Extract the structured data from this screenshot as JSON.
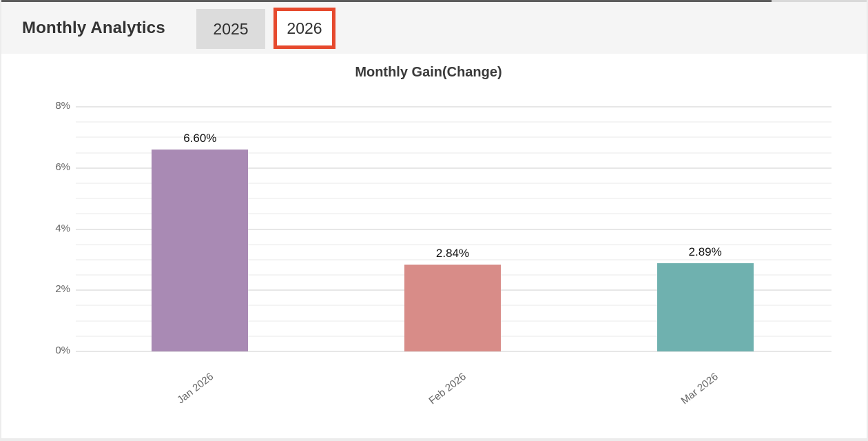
{
  "header": {
    "title": "Monthly Analytics",
    "tabs": [
      {
        "label": "2025",
        "selected": false
      },
      {
        "label": "2026",
        "selected": true
      }
    ]
  },
  "colors": {
    "header_bg": "#f5f5f5",
    "inactive_tab_bg": "#dcdcdc",
    "selected_tab_highlight": "#e6492d",
    "grid_major": "#e7e7e7",
    "grid_minor": "#f4f4f4",
    "axis_text": "#666666"
  },
  "chart_data": {
    "type": "bar",
    "title": "Monthly Gain(Change)",
    "categories": [
      "Jan 2026",
      "Feb 2026",
      "Mar 2026"
    ],
    "values": [
      6.6,
      2.84,
      2.89
    ],
    "value_labels": [
      "6.60%",
      "2.84%",
      "2.89%"
    ],
    "bar_colors": [
      "#a98ab4",
      "#d88c88",
      "#6fb1af"
    ],
    "xlabel": "",
    "ylabel": "",
    "ylim": [
      0,
      8
    ],
    "ytick_major_step": 2,
    "ytick_minor_step": 0.5,
    "ytick_labels": [
      "0%",
      "2%",
      "4%",
      "6%",
      "8%"
    ],
    "grid": true,
    "legend": false,
    "xlabel_rotation_deg": -38
  }
}
